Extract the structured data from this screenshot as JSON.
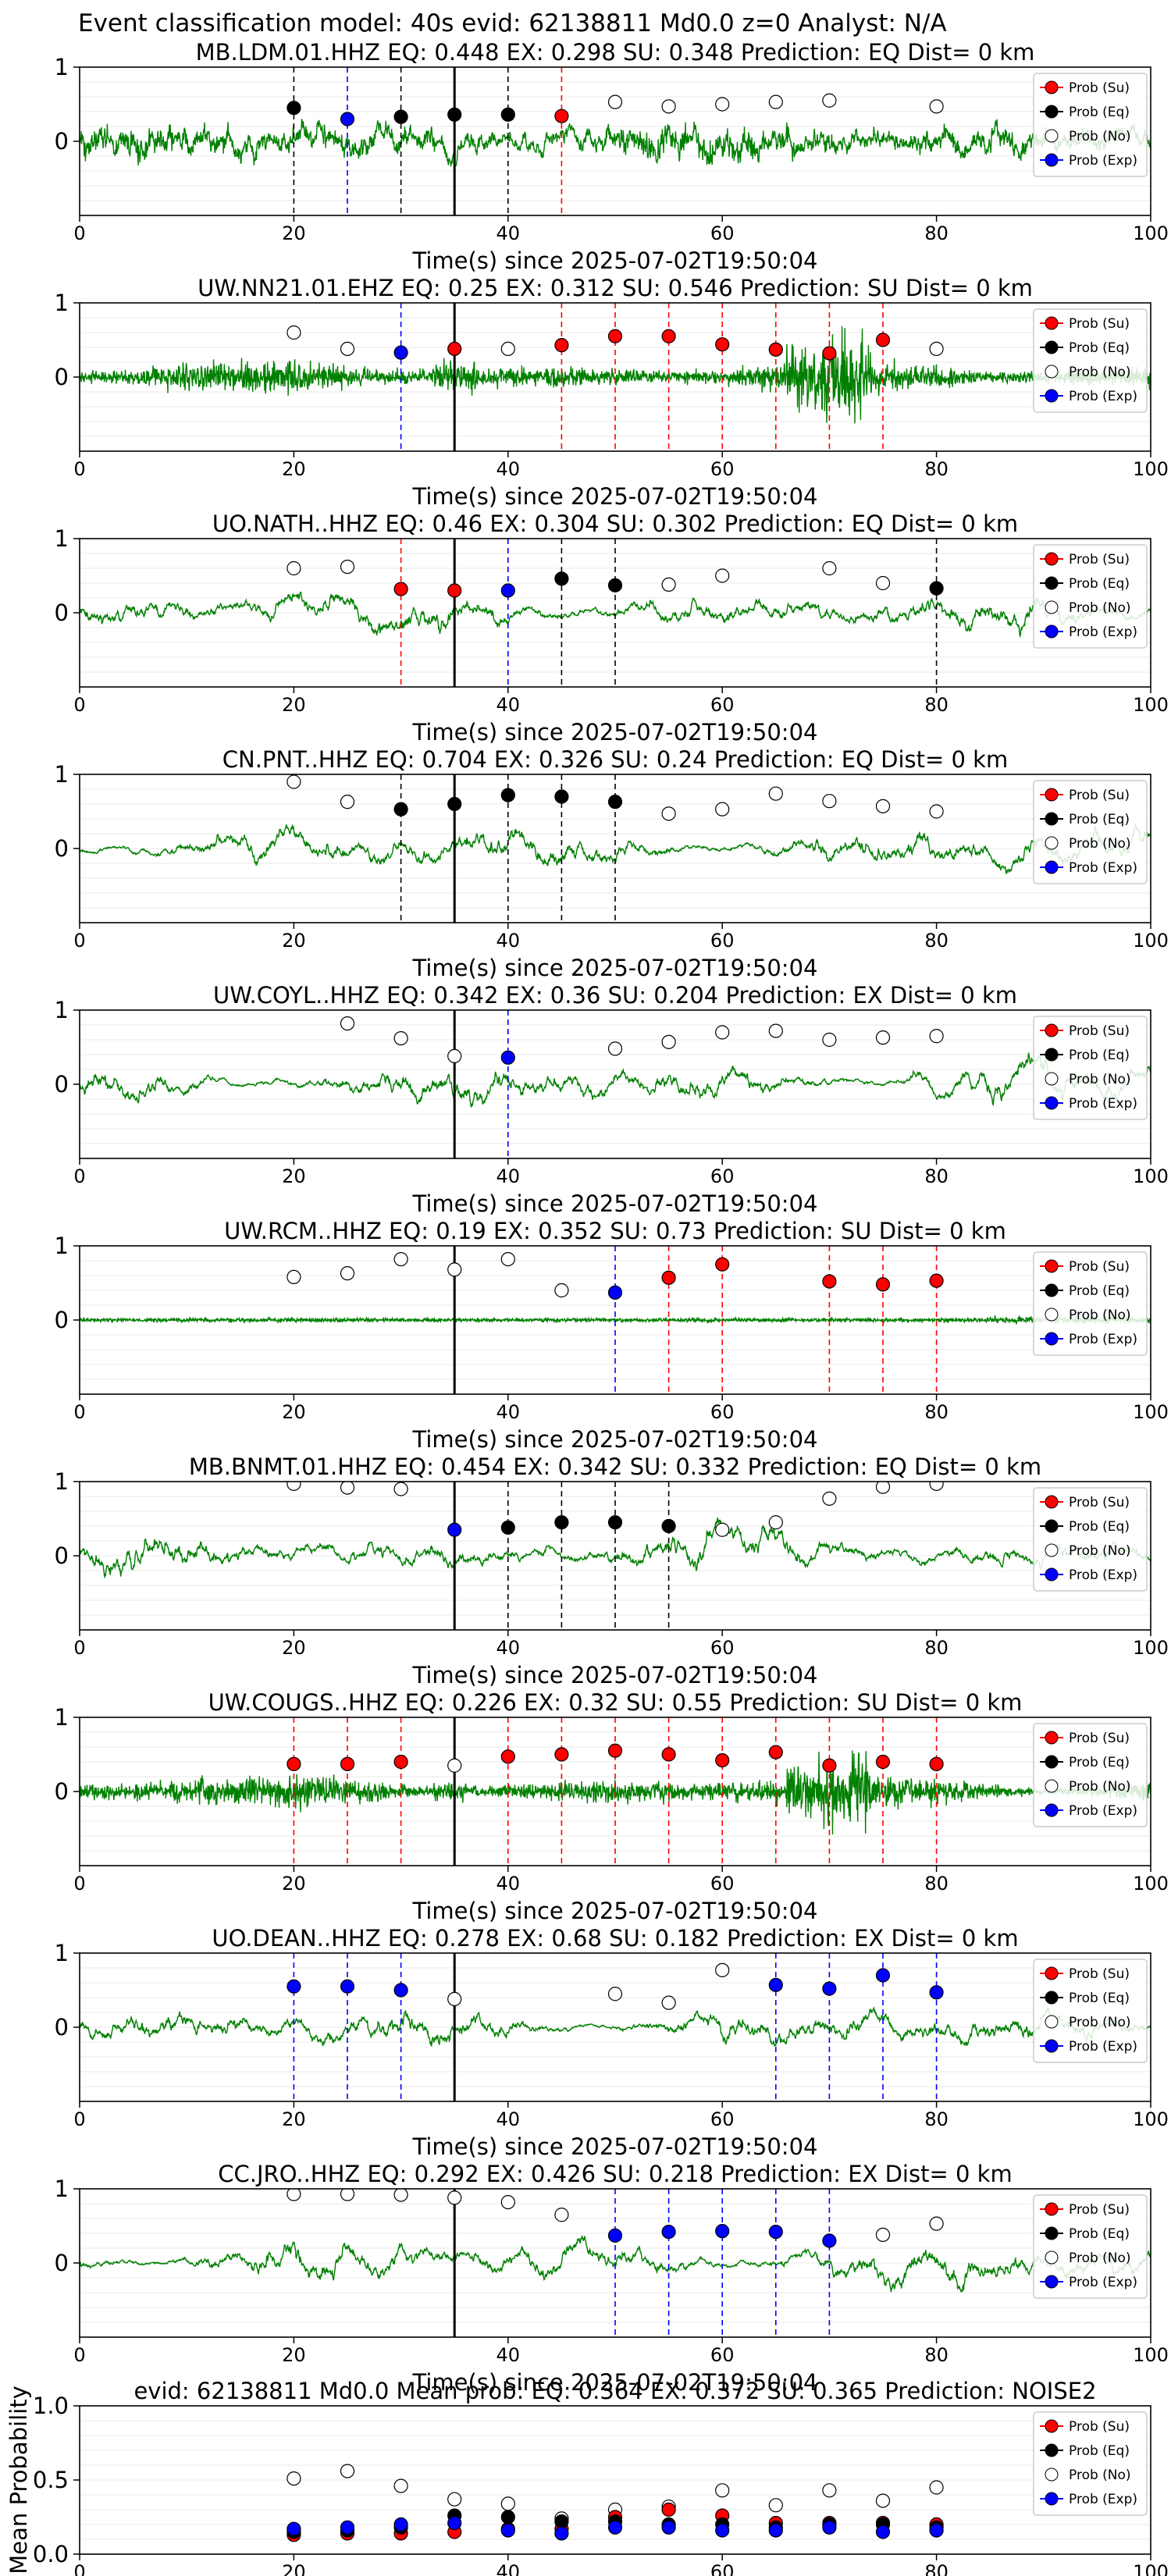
{
  "suptitle": "Event classification model: 40s evid: 62138811 Md0.0 z=0 Analyst: N/A",
  "legend_labels": [
    "Prob (Su)",
    "Prob (Eq)",
    "Prob (No)",
    "Prob (Exp)"
  ],
  "colors": {
    "su": "#ff0000",
    "eq": "#000000",
    "no": "#ffffff",
    "exp": "#0000ff",
    "trace": "#008000"
  },
  "x_ticks": [
    "0",
    "20",
    "40",
    "60",
    "80",
    "100"
  ],
  "chart_data": [
    {
      "type": "line",
      "title": "MB.LDM.01.HHZ   EQ: 0.448   EX: 0.298   SU: 0.348   Prediction: EQ    Dist= 0 km",
      "xlabel": "Time(s) since 2025-07-02T19:50:04",
      "xlim": [
        0,
        100
      ],
      "ylim": [
        -1,
        1
      ],
      "y_ticks": [
        "1",
        "0"
      ],
      "origin_time": 35,
      "trace_style": "broadband",
      "points": [
        {
          "x": 20,
          "y": 0.45,
          "c": "eq"
        },
        {
          "x": 25,
          "y": 0.3,
          "c": "exp"
        },
        {
          "x": 30,
          "y": 0.33,
          "c": "eq"
        },
        {
          "x": 35,
          "y": 0.36,
          "c": "eq"
        },
        {
          "x": 40,
          "y": 0.36,
          "c": "eq"
        },
        {
          "x": 45,
          "y": 0.34,
          "c": "su"
        },
        {
          "x": 50,
          "y": 0.53,
          "c": "no"
        },
        {
          "x": 55,
          "y": 0.47,
          "c": "no"
        },
        {
          "x": 60,
          "y": 0.5,
          "c": "no"
        },
        {
          "x": 65,
          "y": 0.53,
          "c": "no"
        },
        {
          "x": 70,
          "y": 0.55,
          "c": "no"
        },
        {
          "x": 80,
          "y": 0.47,
          "c": "no"
        }
      ]
    },
    {
      "type": "line",
      "title": "UW.NN21.01.EHZ   EQ: 0.25   EX: 0.312   SU: 0.546   Prediction: SU    Dist= 0 km",
      "xlabel": "Time(s) since 2025-07-02T19:50:04",
      "xlim": [
        0,
        100
      ],
      "ylim": [
        -1,
        1
      ],
      "y_ticks": [
        "1",
        "0"
      ],
      "origin_time": 35,
      "trace_style": "noise",
      "points": [
        {
          "x": 20,
          "y": 0.6,
          "c": "no"
        },
        {
          "x": 25,
          "y": 0.38,
          "c": "no"
        },
        {
          "x": 30,
          "y": 0.33,
          "c": "exp"
        },
        {
          "x": 35,
          "y": 0.38,
          "c": "su"
        },
        {
          "x": 40,
          "y": 0.38,
          "c": "no"
        },
        {
          "x": 45,
          "y": 0.43,
          "c": "su"
        },
        {
          "x": 50,
          "y": 0.55,
          "c": "su"
        },
        {
          "x": 55,
          "y": 0.55,
          "c": "su"
        },
        {
          "x": 60,
          "y": 0.44,
          "c": "su"
        },
        {
          "x": 65,
          "y": 0.37,
          "c": "su"
        },
        {
          "x": 70,
          "y": 0.32,
          "c": "su"
        },
        {
          "x": 75,
          "y": 0.5,
          "c": "su"
        },
        {
          "x": 80,
          "y": 0.38,
          "c": "no"
        }
      ]
    },
    {
      "type": "line",
      "title": "UO.NATH..HHZ   EQ: 0.46  EX: 0.304  SU: 0.302   Prediction: EQ    Dist= 0 km",
      "xlabel": "Time(s) since 2025-07-02T19:50:04",
      "xlim": [
        0,
        100
      ],
      "ylim": [
        -1,
        1
      ],
      "y_ticks": [
        "1",
        "0"
      ],
      "origin_time": 35,
      "trace_style": "longperiod",
      "points": [
        {
          "x": 20,
          "y": 0.6,
          "c": "no"
        },
        {
          "x": 25,
          "y": 0.62,
          "c": "no"
        },
        {
          "x": 30,
          "y": 0.32,
          "c": "su"
        },
        {
          "x": 35,
          "y": 0.3,
          "c": "su"
        },
        {
          "x": 40,
          "y": 0.3,
          "c": "exp"
        },
        {
          "x": 45,
          "y": 0.46,
          "c": "eq"
        },
        {
          "x": 50,
          "y": 0.37,
          "c": "eq"
        },
        {
          "x": 55,
          "y": 0.38,
          "c": "no"
        },
        {
          "x": 60,
          "y": 0.5,
          "c": "no"
        },
        {
          "x": 70,
          "y": 0.6,
          "c": "no"
        },
        {
          "x": 75,
          "y": 0.4,
          "c": "no"
        },
        {
          "x": 80,
          "y": 0.33,
          "c": "eq"
        }
      ]
    },
    {
      "type": "line",
      "title": "CN.PNT..HHZ   EQ: 0.704  EX: 0.326  SU: 0.24   Prediction: EQ    Dist= 0 km",
      "xlabel": "Time(s) since 2025-07-02T19:50:04",
      "xlim": [
        0,
        100
      ],
      "ylim": [
        -1,
        1
      ],
      "y_ticks": [
        "1",
        "0"
      ],
      "origin_time": 35,
      "trace_style": "longperiod",
      "points": [
        {
          "x": 20,
          "y": 0.9,
          "c": "no"
        },
        {
          "x": 25,
          "y": 0.63,
          "c": "no"
        },
        {
          "x": 30,
          "y": 0.53,
          "c": "eq"
        },
        {
          "x": 35,
          "y": 0.6,
          "c": "eq"
        },
        {
          "x": 40,
          "y": 0.72,
          "c": "eq"
        },
        {
          "x": 45,
          "y": 0.7,
          "c": "eq"
        },
        {
          "x": 50,
          "y": 0.63,
          "c": "eq"
        },
        {
          "x": 55,
          "y": 0.47,
          "c": "no"
        },
        {
          "x": 60,
          "y": 0.53,
          "c": "no"
        },
        {
          "x": 65,
          "y": 0.74,
          "c": "no"
        },
        {
          "x": 70,
          "y": 0.64,
          "c": "no"
        },
        {
          "x": 75,
          "y": 0.57,
          "c": "no"
        },
        {
          "x": 80,
          "y": 0.5,
          "c": "no"
        }
      ]
    },
    {
      "type": "line",
      "title": "UW.COYL..HHZ   EQ: 0.342  EX: 0.36  SU: 0.204   Prediction: EX    Dist= 0 km",
      "xlabel": "Time(s) since 2025-07-02T19:50:04",
      "xlim": [
        0,
        100
      ],
      "ylim": [
        -1,
        1
      ],
      "y_ticks": [
        "1",
        "0"
      ],
      "origin_time": 35,
      "trace_style": "longperiod",
      "points": [
        {
          "x": 25,
          "y": 0.82,
          "c": "no"
        },
        {
          "x": 30,
          "y": 0.62,
          "c": "no"
        },
        {
          "x": 35,
          "y": 0.38,
          "c": "no"
        },
        {
          "x": 40,
          "y": 0.36,
          "c": "exp"
        },
        {
          "x": 50,
          "y": 0.48,
          "c": "no"
        },
        {
          "x": 55,
          "y": 0.57,
          "c": "no"
        },
        {
          "x": 60,
          "y": 0.7,
          "c": "no"
        },
        {
          "x": 65,
          "y": 0.72,
          "c": "no"
        },
        {
          "x": 70,
          "y": 0.6,
          "c": "no"
        },
        {
          "x": 75,
          "y": 0.63,
          "c": "no"
        },
        {
          "x": 80,
          "y": 0.65,
          "c": "no"
        }
      ]
    },
    {
      "type": "line",
      "title": "UW.RCM..HHZ   EQ: 0.19  EX: 0.352  SU: 0.73   Prediction: SU    Dist= 0 km",
      "xlabel": "Time(s) since 2025-07-02T19:50:04",
      "xlim": [
        0,
        100
      ],
      "ylim": [
        -1,
        1
      ],
      "y_ticks": [
        "1",
        "0"
      ],
      "origin_time": 35,
      "trace_style": "quiet",
      "points": [
        {
          "x": 20,
          "y": 0.58,
          "c": "no"
        },
        {
          "x": 25,
          "y": 0.63,
          "c": "no"
        },
        {
          "x": 30,
          "y": 0.82,
          "c": "no"
        },
        {
          "x": 35,
          "y": 0.68,
          "c": "no"
        },
        {
          "x": 40,
          "y": 0.82,
          "c": "no"
        },
        {
          "x": 45,
          "y": 0.4,
          "c": "no"
        },
        {
          "x": 50,
          "y": 0.37,
          "c": "exp"
        },
        {
          "x": 55,
          "y": 0.57,
          "c": "su"
        },
        {
          "x": 60,
          "y": 0.75,
          "c": "su"
        },
        {
          "x": 70,
          "y": 0.52,
          "c": "su"
        },
        {
          "x": 75,
          "y": 0.48,
          "c": "su"
        },
        {
          "x": 80,
          "y": 0.53,
          "c": "su"
        }
      ]
    },
    {
      "type": "line",
      "title": "MB.BNMT.01.HHZ   EQ: 0.454  EX: 0.342  SU: 0.332   Prediction: EQ    Dist= 0 km",
      "xlabel": "Time(s) since 2025-07-02T19:50:04",
      "xlim": [
        0,
        100
      ],
      "ylim": [
        -1,
        1
      ],
      "y_ticks": [
        "1",
        "0"
      ],
      "origin_time": 35,
      "trace_style": "longperiod",
      "points": [
        {
          "x": 20,
          "y": 0.97,
          "c": "no"
        },
        {
          "x": 25,
          "y": 0.92,
          "c": "no"
        },
        {
          "x": 30,
          "y": 0.9,
          "c": "no"
        },
        {
          "x": 35,
          "y": 0.35,
          "c": "exp"
        },
        {
          "x": 40,
          "y": 0.38,
          "c": "eq"
        },
        {
          "x": 45,
          "y": 0.45,
          "c": "eq"
        },
        {
          "x": 50,
          "y": 0.45,
          "c": "eq"
        },
        {
          "x": 55,
          "y": 0.4,
          "c": "eq"
        },
        {
          "x": 60,
          "y": 0.35,
          "c": "no"
        },
        {
          "x": 65,
          "y": 0.45,
          "c": "no"
        },
        {
          "x": 70,
          "y": 0.77,
          "c": "no"
        },
        {
          "x": 75,
          "y": 0.93,
          "c": "no"
        },
        {
          "x": 80,
          "y": 0.97,
          "c": "no"
        }
      ]
    },
    {
      "type": "line",
      "title": "UW.COUGS..HHZ   EQ: 0.226  EX: 0.32  SU: 0.55   Prediction: SU    Dist= 0 km",
      "xlabel": "Time(s) since 2025-07-02T19:50:04",
      "xlim": [
        0,
        100
      ],
      "ylim": [
        -1,
        1
      ],
      "y_ticks": [
        "1",
        "0"
      ],
      "origin_time": 35,
      "trace_style": "noise",
      "points": [
        {
          "x": 20,
          "y": 0.37,
          "c": "su"
        },
        {
          "x": 25,
          "y": 0.37,
          "c": "su"
        },
        {
          "x": 30,
          "y": 0.4,
          "c": "su"
        },
        {
          "x": 35,
          "y": 0.35,
          "c": "no"
        },
        {
          "x": 40,
          "y": 0.47,
          "c": "su"
        },
        {
          "x": 45,
          "y": 0.5,
          "c": "su"
        },
        {
          "x": 50,
          "y": 0.55,
          "c": "su"
        },
        {
          "x": 55,
          "y": 0.5,
          "c": "su"
        },
        {
          "x": 60,
          "y": 0.42,
          "c": "su"
        },
        {
          "x": 65,
          "y": 0.53,
          "c": "su"
        },
        {
          "x": 70,
          "y": 0.35,
          "c": "su"
        },
        {
          "x": 75,
          "y": 0.4,
          "c": "su"
        },
        {
          "x": 80,
          "y": 0.37,
          "c": "su"
        }
      ]
    },
    {
      "type": "line",
      "title": "UO.DEAN..HHZ   EQ: 0.278  EX: 0.68  SU: 0.182   Prediction: EX    Dist= 0 km",
      "xlabel": "Time(s) since 2025-07-02T19:50:04",
      "xlim": [
        0,
        100
      ],
      "ylim": [
        -1,
        1
      ],
      "y_ticks": [
        "1",
        "0"
      ],
      "origin_time": 35,
      "trace_style": "longperiod",
      "points": [
        {
          "x": 20,
          "y": 0.55,
          "c": "exp"
        },
        {
          "x": 25,
          "y": 0.55,
          "c": "exp"
        },
        {
          "x": 30,
          "y": 0.5,
          "c": "exp"
        },
        {
          "x": 35,
          "y": 0.38,
          "c": "no"
        },
        {
          "x": 50,
          "y": 0.45,
          "c": "no"
        },
        {
          "x": 55,
          "y": 0.33,
          "c": "no"
        },
        {
          "x": 60,
          "y": 0.77,
          "c": "no"
        },
        {
          "x": 65,
          "y": 0.57,
          "c": "exp"
        },
        {
          "x": 70,
          "y": 0.52,
          "c": "exp"
        },
        {
          "x": 75,
          "y": 0.7,
          "c": "exp"
        },
        {
          "x": 80,
          "y": 0.47,
          "c": "exp"
        }
      ]
    },
    {
      "type": "line",
      "title": "CC.JRO..HHZ   EQ: 0.292  EX: 0.426  SU: 0.218   Prediction: EX    Dist= 0 km",
      "xlabel": "Time(s) since 2025-07-02T19:50:04",
      "xlim": [
        0,
        100
      ],
      "ylim": [
        -1,
        1
      ],
      "y_ticks": [
        "1",
        "0"
      ],
      "origin_time": 35,
      "trace_style": "longperiod",
      "points": [
        {
          "x": 20,
          "y": 0.93,
          "c": "no"
        },
        {
          "x": 25,
          "y": 0.93,
          "c": "no"
        },
        {
          "x": 30,
          "y": 0.92,
          "c": "no"
        },
        {
          "x": 35,
          "y": 0.88,
          "c": "no"
        },
        {
          "x": 40,
          "y": 0.82,
          "c": "no"
        },
        {
          "x": 45,
          "y": 0.65,
          "c": "no"
        },
        {
          "x": 50,
          "y": 0.37,
          "c": "exp"
        },
        {
          "x": 55,
          "y": 0.42,
          "c": "exp"
        },
        {
          "x": 60,
          "y": 0.43,
          "c": "exp"
        },
        {
          "x": 65,
          "y": 0.42,
          "c": "exp"
        },
        {
          "x": 70,
          "y": 0.3,
          "c": "exp"
        },
        {
          "x": 75,
          "y": 0.38,
          "c": "no"
        },
        {
          "x": 80,
          "y": 0.53,
          "c": "no"
        }
      ]
    },
    {
      "type": "scatter",
      "title": "evid: 62138811  Md0.0   Mean prob:   EQ: 0.364  EX: 0.372  SU: 0.365   Prediction: NOISE2",
      "xlabel": "",
      "ylabel": "Mean Probability",
      "xlim": [
        0,
        100
      ],
      "ylim": [
        0,
        1
      ],
      "y_ticks": [
        "0.0",
        "0.5",
        "1.0"
      ],
      "points": [
        {
          "x": 20,
          "y": 0.51,
          "c": "no"
        },
        {
          "x": 20,
          "y": 0.13,
          "c": "su"
        },
        {
          "x": 20,
          "y": 0.15,
          "c": "eq"
        },
        {
          "x": 20,
          "y": 0.17,
          "c": "exp"
        },
        {
          "x": 25,
          "y": 0.56,
          "c": "no"
        },
        {
          "x": 25,
          "y": 0.14,
          "c": "su"
        },
        {
          "x": 25,
          "y": 0.16,
          "c": "eq"
        },
        {
          "x": 25,
          "y": 0.18,
          "c": "exp"
        },
        {
          "x": 30,
          "y": 0.46,
          "c": "no"
        },
        {
          "x": 30,
          "y": 0.14,
          "c": "su"
        },
        {
          "x": 30,
          "y": 0.18,
          "c": "eq"
        },
        {
          "x": 30,
          "y": 0.2,
          "c": "exp"
        },
        {
          "x": 35,
          "y": 0.37,
          "c": "no"
        },
        {
          "x": 35,
          "y": 0.15,
          "c": "su"
        },
        {
          "x": 35,
          "y": 0.26,
          "c": "eq"
        },
        {
          "x": 35,
          "y": 0.21,
          "c": "exp"
        },
        {
          "x": 40,
          "y": 0.34,
          "c": "no"
        },
        {
          "x": 40,
          "y": 0.17,
          "c": "su"
        },
        {
          "x": 40,
          "y": 0.25,
          "c": "eq"
        },
        {
          "x": 40,
          "y": 0.16,
          "c": "exp"
        },
        {
          "x": 45,
          "y": 0.24,
          "c": "no"
        },
        {
          "x": 45,
          "y": 0.17,
          "c": "su"
        },
        {
          "x": 45,
          "y": 0.22,
          "c": "eq"
        },
        {
          "x": 45,
          "y": 0.14,
          "c": "exp"
        },
        {
          "x": 50,
          "y": 0.3,
          "c": "no"
        },
        {
          "x": 50,
          "y": 0.25,
          "c": "su"
        },
        {
          "x": 50,
          "y": 0.22,
          "c": "eq"
        },
        {
          "x": 50,
          "y": 0.18,
          "c": "exp"
        },
        {
          "x": 55,
          "y": 0.32,
          "c": "no"
        },
        {
          "x": 55,
          "y": 0.3,
          "c": "su"
        },
        {
          "x": 55,
          "y": 0.2,
          "c": "eq"
        },
        {
          "x": 55,
          "y": 0.18,
          "c": "exp"
        },
        {
          "x": 60,
          "y": 0.43,
          "c": "no"
        },
        {
          "x": 60,
          "y": 0.26,
          "c": "su"
        },
        {
          "x": 60,
          "y": 0.2,
          "c": "eq"
        },
        {
          "x": 60,
          "y": 0.16,
          "c": "exp"
        },
        {
          "x": 65,
          "y": 0.33,
          "c": "no"
        },
        {
          "x": 65,
          "y": 0.21,
          "c": "su"
        },
        {
          "x": 65,
          "y": 0.18,
          "c": "eq"
        },
        {
          "x": 65,
          "y": 0.16,
          "c": "exp"
        },
        {
          "x": 70,
          "y": 0.43,
          "c": "no"
        },
        {
          "x": 70,
          "y": 0.21,
          "c": "su"
        },
        {
          "x": 70,
          "y": 0.2,
          "c": "eq"
        },
        {
          "x": 70,
          "y": 0.18,
          "c": "exp"
        },
        {
          "x": 75,
          "y": 0.36,
          "c": "no"
        },
        {
          "x": 75,
          "y": 0.21,
          "c": "su"
        },
        {
          "x": 75,
          "y": 0.2,
          "c": "eq"
        },
        {
          "x": 75,
          "y": 0.15,
          "c": "exp"
        },
        {
          "x": 80,
          "y": 0.45,
          "c": "no"
        },
        {
          "x": 80,
          "y": 0.2,
          "c": "su"
        },
        {
          "x": 80,
          "y": 0.18,
          "c": "eq"
        },
        {
          "x": 80,
          "y": 0.16,
          "c": "exp"
        }
      ]
    }
  ]
}
